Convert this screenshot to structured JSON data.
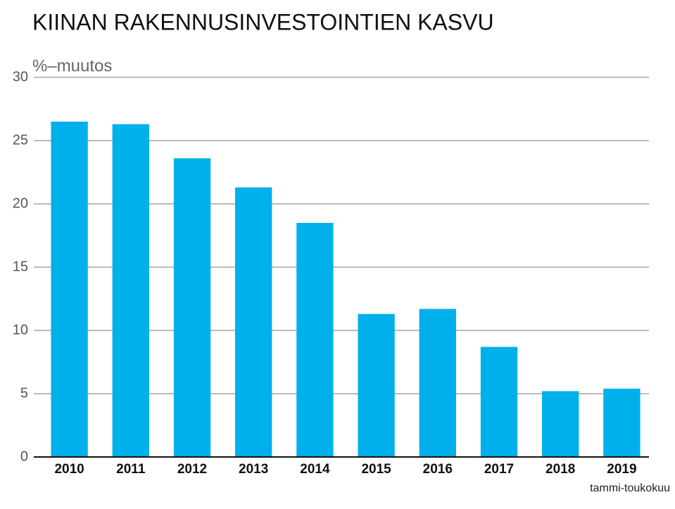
{
  "chart_data": {
    "type": "bar",
    "title": "KIINAN RAKENNUSINVESTOINTIEN KASVU",
    "y_label": "%–muutos",
    "annotation": "tammi-toukokuu",
    "categories": [
      "2010",
      "2011",
      "2012",
      "2013",
      "2014",
      "2015",
      "2016",
      "2017",
      "2018",
      "2019"
    ],
    "values": [
      26.5,
      26.3,
      23.6,
      21.3,
      18.5,
      11.3,
      11.7,
      8.7,
      5.2,
      5.4
    ],
    "color": "#00b0ea",
    "ylim": [
      0,
      30
    ],
    "yticks": [
      0,
      5,
      10,
      15,
      20,
      25,
      30
    ],
    "grid": true
  }
}
